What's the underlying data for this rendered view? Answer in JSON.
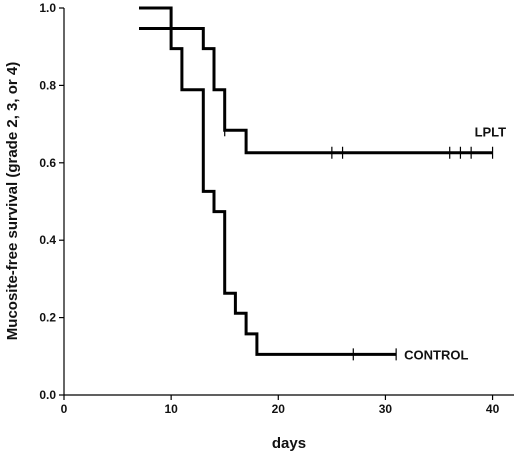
{
  "chart_data": {
    "type": "line",
    "title": "",
    "xlabel": "days",
    "ylabel": "Mucosite-free survival (grade 2, 3, or 4)",
    "xlim": [
      0,
      42
    ],
    "ylim": [
      0,
      1.0
    ],
    "x_ticks": [
      "0",
      "10",
      "20",
      "30",
      "40"
    ],
    "y_ticks": [
      "0.0",
      "0.2",
      "0.4",
      "0.6",
      "0.8",
      "1.0"
    ],
    "grid": false,
    "legend": "none",
    "step": true,
    "series": [
      {
        "name": "LPLT",
        "color": "#000000",
        "points": [
          [
            7,
            1.0
          ],
          [
            10,
            1.0
          ],
          [
            10,
            0.947
          ],
          [
            13,
            0.947
          ],
          [
            13,
            0.895
          ],
          [
            14,
            0.895
          ],
          [
            14,
            0.789
          ],
          [
            15,
            0.789
          ],
          [
            15,
            0.684
          ],
          [
            17,
            0.684
          ],
          [
            17,
            0.626
          ],
          [
            40,
            0.626
          ]
        ],
        "censored": [
          [
            15,
            0.684
          ],
          [
            25,
            0.626
          ],
          [
            26,
            0.626
          ],
          [
            36,
            0.626
          ],
          [
            37,
            0.626
          ],
          [
            38,
            0.626
          ],
          [
            40,
            0.626
          ]
        ]
      },
      {
        "name": "CONTROL",
        "color": "#000000",
        "points": [
          [
            7,
            0.947
          ],
          [
            10,
            0.947
          ],
          [
            10,
            0.895
          ],
          [
            11,
            0.895
          ],
          [
            11,
            0.789
          ],
          [
            13,
            0.789
          ],
          [
            13,
            0.526
          ],
          [
            14,
            0.526
          ],
          [
            14,
            0.474
          ],
          [
            15,
            0.474
          ],
          [
            15,
            0.263
          ],
          [
            16,
            0.263
          ],
          [
            16,
            0.211
          ],
          [
            17,
            0.211
          ],
          [
            17,
            0.158
          ],
          [
            18,
            0.158
          ],
          [
            18,
            0.105
          ],
          [
            31,
            0.105
          ]
        ],
        "censored": [
          [
            27,
            0.105
          ],
          [
            31,
            0.105
          ]
        ]
      }
    ]
  }
}
